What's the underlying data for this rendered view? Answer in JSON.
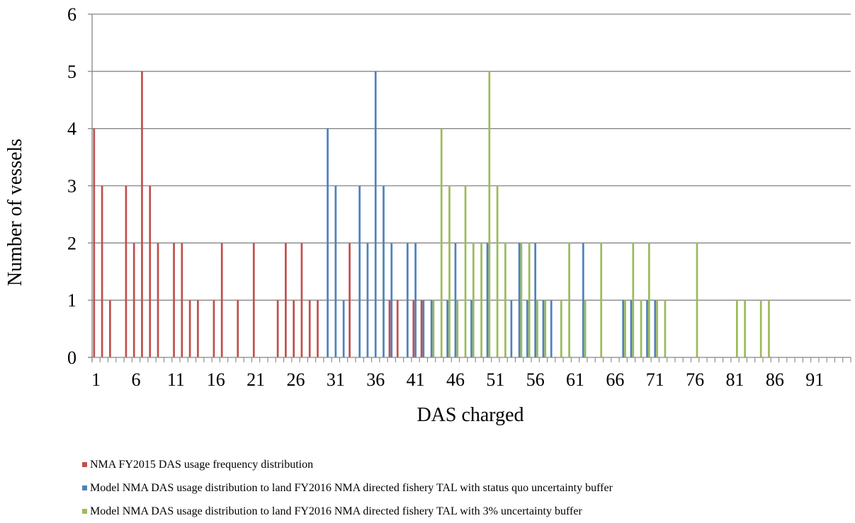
{
  "chart_data": {
    "type": "bar",
    "xlabel": "DAS charged",
    "ylabel": "Number of vessels",
    "ylim": [
      0,
      6
    ],
    "yticks": [
      0,
      1,
      2,
      3,
      4,
      5,
      6
    ],
    "x_range": [
      1,
      95
    ],
    "xtick_labels": [
      1,
      6,
      11,
      16,
      21,
      26,
      31,
      36,
      41,
      46,
      51,
      56,
      61,
      66,
      71,
      76,
      81,
      86,
      91
    ],
    "grid": "horizontal",
    "legend_position": "bottom",
    "series": [
      {
        "name": "NMA FY2015 DAS usage frequency distribution",
        "color": "#C0504D",
        "points": [
          [
            1,
            4
          ],
          [
            2,
            3
          ],
          [
            3,
            1
          ],
          [
            5,
            3
          ],
          [
            6,
            2
          ],
          [
            7,
            5
          ],
          [
            8,
            3
          ],
          [
            9,
            2
          ],
          [
            11,
            2
          ],
          [
            12,
            2
          ],
          [
            13,
            1
          ],
          [
            14,
            1
          ],
          [
            16,
            1
          ],
          [
            17,
            2
          ],
          [
            19,
            1
          ],
          [
            21,
            2
          ],
          [
            24,
            1
          ],
          [
            25,
            2
          ],
          [
            26,
            1
          ],
          [
            27,
            2
          ],
          [
            28,
            1
          ],
          [
            29,
            1
          ],
          [
            33,
            2
          ],
          [
            38,
            1
          ],
          [
            39,
            1
          ],
          [
            41,
            1
          ],
          [
            42,
            1
          ]
        ]
      },
      {
        "name": "Model NMA DAS usage distribution to land FY2016 NMA directed fishery TAL with status quo uncertainty buffer",
        "color": "#4F81BD",
        "points": [
          [
            30,
            4
          ],
          [
            31,
            3
          ],
          [
            32,
            1
          ],
          [
            34,
            3
          ],
          [
            35,
            2
          ],
          [
            36,
            5
          ],
          [
            37,
            3
          ],
          [
            38,
            2
          ],
          [
            40,
            2
          ],
          [
            41,
            2
          ],
          [
            42,
            1
          ],
          [
            43,
            1
          ],
          [
            45,
            1
          ],
          [
            46,
            2
          ],
          [
            48,
            1
          ],
          [
            50,
            2
          ],
          [
            53,
            1
          ],
          [
            54,
            2
          ],
          [
            55,
            1
          ],
          [
            56,
            2
          ],
          [
            57,
            1
          ],
          [
            58,
            1
          ],
          [
            62,
            2
          ],
          [
            67,
            1
          ],
          [
            68,
            1
          ],
          [
            70,
            1
          ],
          [
            71,
            1
          ]
        ]
      },
      {
        "name": "Model NMA DAS usage distribution to land FY2016 NMA directed fishery TAL with 3% uncertainty buffer",
        "color": "#9BBB59",
        "points": [
          [
            43,
            1
          ],
          [
            44,
            4
          ],
          [
            45,
            3
          ],
          [
            46,
            1
          ],
          [
            47,
            3
          ],
          [
            48,
            2
          ],
          [
            49,
            2
          ],
          [
            50,
            5
          ],
          [
            51,
            3
          ],
          [
            52,
            2
          ],
          [
            54,
            2
          ],
          [
            55,
            2
          ],
          [
            56,
            1
          ],
          [
            57,
            1
          ],
          [
            59,
            1
          ],
          [
            60,
            2
          ],
          [
            62,
            1
          ],
          [
            64,
            2
          ],
          [
            67,
            1
          ],
          [
            68,
            2
          ],
          [
            69,
            1
          ],
          [
            70,
            2
          ],
          [
            71,
            1
          ],
          [
            72,
            1
          ],
          [
            76,
            2
          ],
          [
            81,
            1
          ],
          [
            82,
            1
          ],
          [
            84,
            1
          ],
          [
            85,
            1
          ]
        ]
      }
    ]
  }
}
